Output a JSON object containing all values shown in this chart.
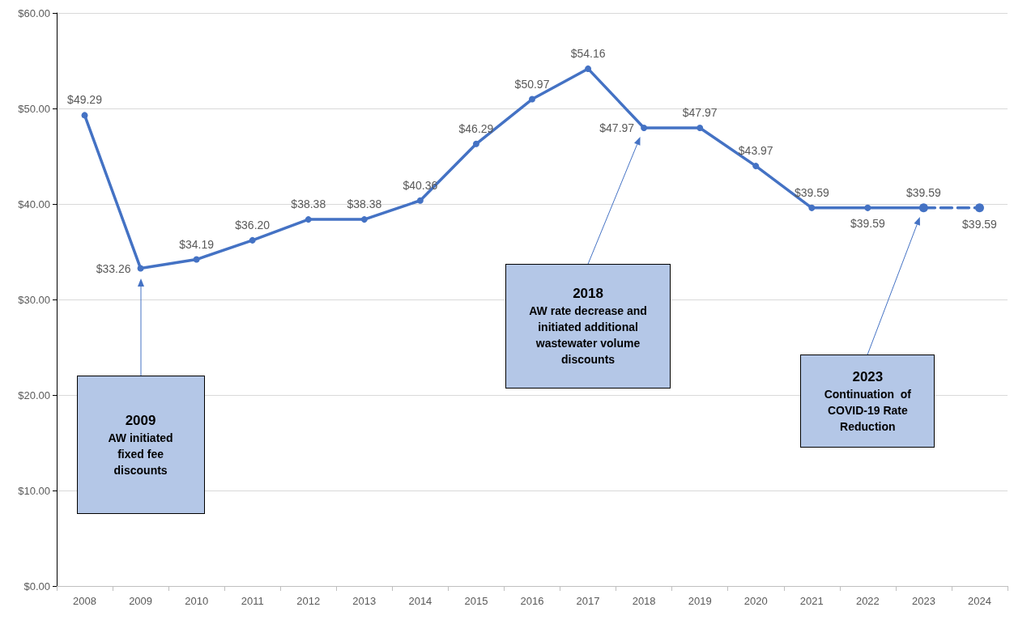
{
  "chart_data": {
    "type": "line",
    "categories": [
      "2008",
      "2009",
      "2010",
      "2011",
      "2012",
      "2013",
      "2014",
      "2015",
      "2016",
      "2017",
      "2018",
      "2019",
      "2020",
      "2021",
      "2022",
      "2023",
      "2024"
    ],
    "series": [
      {
        "color": "#4472c4",
        "line_style": "solid",
        "values": [
          49.29,
          33.26,
          34.19,
          36.2,
          38.38,
          38.38,
          40.36,
          46.29,
          50.97,
          54.16,
          47.97,
          47.97,
          43.97,
          39.59,
          39.59,
          39.59,
          null
        ],
        "value_labels": [
          "$49.29",
          "$33.26",
          "$34.19",
          "$36.20",
          "$38.38",
          "$38.38",
          "$40.36",
          "$46.29",
          "$50.97",
          "$54.16",
          "$47.97",
          "$47.97",
          "$43.97",
          "$39.59",
          "$39.59",
          "$39.59",
          null
        ]
      },
      {
        "color": "#4472c4",
        "line_style": "dashed",
        "values": [
          null,
          null,
          null,
          null,
          null,
          null,
          null,
          null,
          null,
          null,
          null,
          null,
          null,
          null,
          null,
          39.59,
          39.59
        ],
        "value_labels": [
          null,
          null,
          null,
          null,
          null,
          null,
          null,
          null,
          null,
          null,
          null,
          null,
          null,
          null,
          null,
          null,
          "$39.59"
        ]
      }
    ],
    "ylim": [
      0,
      60
    ],
    "yticks": [
      {
        "value": 0,
        "label": "$0.00"
      },
      {
        "value": 10,
        "label": "$10.00"
      },
      {
        "value": 20,
        "label": "$20.00"
      },
      {
        "value": 30,
        "label": "$30.00"
      },
      {
        "value": 40,
        "label": "$40.00"
      },
      {
        "value": 50,
        "label": "$50.00"
      },
      {
        "value": 60,
        "label": "$60.00"
      }
    ],
    "grid": "y",
    "marker": "circle",
    "annotations": [
      "2009\nAW initiated\nfixed fee\ndiscounts",
      "2018\nAW rate decrease and\ninitiated additional\nwastewater volume\ndiscounts",
      "2023\nContinuation  of\nCOVID-19 Rate\nReduction"
    ]
  }
}
